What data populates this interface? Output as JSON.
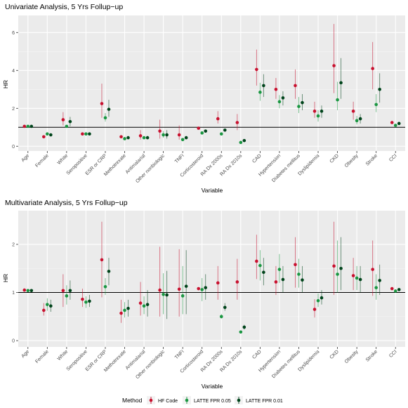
{
  "legend": {
    "title": "Method",
    "placement": "bottom",
    "entries": [
      {
        "name": "HF Code",
        "color": "#c8102e"
      },
      {
        "name": "LATTE FPR 0.05",
        "color": "#1a9641"
      },
      {
        "name": "LATTE FPR 0.01",
        "color": "#00441b"
      }
    ]
  },
  "chart_data": [
    {
      "type": "scatter",
      "title": "Univariate Analysis, 5 Yrs Follup−up",
      "xlabel": "Variable",
      "ylabel": "HR",
      "ylim": [
        -0.25,
        6.9
      ],
      "yticks": [
        0,
        2,
        4,
        6
      ],
      "reference_line": 1,
      "grid": true,
      "categories": [
        "Age",
        "Female",
        "White",
        "Seropositive",
        "ESR or CRP",
        "Methotrexate",
        "Antimalarial",
        "Other nonbiologic",
        "TNFi",
        "Corticosteroid",
        "RA Dx 2000s",
        "RA Dx 2010s",
        "CAD",
        "Hypertension",
        "Diabetes mellitus",
        "Dyslipidemia",
        "CKD",
        "Obesity",
        "Stroke",
        "CCI"
      ],
      "series": [
        {
          "name": "HF Code",
          "values": [
            1.05,
            0.5,
            1.4,
            0.65,
            2.25,
            0.5,
            0.55,
            0.8,
            0.6,
            0.95,
            1.45,
            1.25,
            4.05,
            3.0,
            3.2,
            1.85,
            4.25,
            1.85,
            4.1,
            1.25
          ],
          "lower": [
            null,
            null,
            1.1,
            null,
            1.5,
            null,
            0.35,
            0.4,
            0.35,
            null,
            1.2,
            0.85,
            3.2,
            2.5,
            2.5,
            1.5,
            2.8,
            1.4,
            3.0,
            null
          ],
          "upper": [
            null,
            null,
            1.8,
            null,
            3.3,
            null,
            0.85,
            1.4,
            1.1,
            null,
            1.85,
            1.7,
            5.1,
            3.6,
            4.05,
            2.35,
            6.45,
            2.35,
            5.5,
            null
          ]
        },
        {
          "name": "LATTE FPR 0.05",
          "values": [
            1.05,
            0.65,
            1.05,
            0.65,
            1.5,
            0.4,
            0.45,
            0.6,
            0.35,
            0.7,
            0.65,
            0.2,
            2.85,
            2.35,
            2.1,
            1.6,
            2.45,
            1.35,
            2.2,
            1.1
          ],
          "lower": [
            null,
            null,
            null,
            null,
            1.3,
            null,
            null,
            0.45,
            null,
            null,
            null,
            null,
            2.4,
            2.0,
            1.75,
            1.3,
            1.9,
            1.15,
            1.8,
            null
          ],
          "upper": [
            null,
            null,
            null,
            null,
            1.75,
            null,
            null,
            0.8,
            null,
            null,
            null,
            null,
            3.35,
            2.7,
            2.6,
            1.9,
            3.4,
            1.6,
            2.75,
            null
          ]
        },
        {
          "name": "LATTE FPR 0.01",
          "values": [
            1.05,
            0.6,
            1.3,
            0.65,
            1.95,
            0.45,
            0.45,
            0.6,
            0.45,
            0.8,
            0.85,
            0.3,
            3.2,
            2.55,
            2.3,
            1.85,
            3.35,
            1.45,
            3.0,
            1.2
          ],
          "lower": [
            null,
            null,
            1.05,
            null,
            1.55,
            null,
            null,
            0.4,
            null,
            null,
            null,
            null,
            2.6,
            2.15,
            1.9,
            1.5,
            2.5,
            1.2,
            2.3,
            null
          ],
          "upper": [
            null,
            null,
            1.55,
            null,
            2.45,
            null,
            null,
            0.85,
            null,
            null,
            null,
            null,
            3.8,
            2.9,
            2.75,
            2.15,
            4.65,
            1.7,
            3.85,
            null
          ]
        }
      ]
    },
    {
      "type": "scatter",
      "title": "Multivariate Analysis, 5 Yrs Follup−up",
      "xlabel": "Variable",
      "ylabel": "HR",
      "ylim": [
        -0.13,
        2.7
      ],
      "yticks": [
        0,
        1,
        2
      ],
      "reference_line": 1,
      "grid": true,
      "categories": [
        "Age",
        "Female",
        "White",
        "Seropositive",
        "ESR or CRP",
        "Methotrexate",
        "Antimalarial",
        "Other nonbiologic",
        "TNFi",
        "Corticosteroid",
        "RA Dx 2000s",
        "RA Dx 2010s",
        "CAD",
        "Hypertension",
        "Diabetes mellitus",
        "Dyslipidemia",
        "CKD",
        "Obesity",
        "Stroke",
        "CCI"
      ],
      "series": [
        {
          "name": "HF Code",
          "values": [
            1.05,
            0.63,
            1.04,
            0.86,
            1.68,
            0.57,
            0.78,
            1.05,
            1.07,
            1.08,
            1.2,
            1.22,
            1.65,
            1.22,
            1.58,
            0.65,
            1.55,
            1.35,
            1.48,
            1.08
          ],
          "lower": [
            null,
            0.52,
            0.7,
            0.7,
            0.9,
            0.37,
            0.52,
            0.5,
            0.5,
            null,
            0.85,
            0.85,
            1.28,
            0.95,
            1.1,
            0.48,
            0.95,
            1.05,
            0.93,
            null
          ],
          "upper": [
            null,
            0.78,
            1.38,
            1.08,
            2.47,
            0.85,
            1.22,
            1.95,
            1.9,
            null,
            1.55,
            1.7,
            2.2,
            1.55,
            2.15,
            0.86,
            2.47,
            1.72,
            2.08,
            null
          ]
        },
        {
          "name": "LATTE FPR 0.05",
          "values": [
            1.04,
            0.75,
            0.93,
            0.8,
            1.12,
            0.63,
            0.72,
            0.96,
            0.93,
            1.06,
            0.5,
            0.18,
            1.56,
            1.48,
            1.38,
            0.83,
            1.38,
            1.3,
            1.1,
            1.03
          ],
          "lower": [
            null,
            0.62,
            0.75,
            0.68,
            0.95,
            0.48,
            0.55,
            0.55,
            0.55,
            0.82,
            0.46,
            null,
            1.25,
            1.2,
            1.1,
            0.7,
            1.0,
            1.05,
            0.85,
            null
          ],
          "upper": [
            null,
            0.88,
            1.15,
            0.92,
            1.3,
            0.8,
            0.92,
            1.4,
            1.55,
            1.3,
            0.55,
            null,
            1.88,
            1.8,
            1.7,
            0.98,
            2.08,
            1.55,
            1.38,
            null
          ]
        },
        {
          "name": "LATTE FPR 0.01",
          "values": [
            1.04,
            0.72,
            1.04,
            0.82,
            1.44,
            0.67,
            0.75,
            0.95,
            1.13,
            1.1,
            0.69,
            0.28,
            1.42,
            1.27,
            1.26,
            0.89,
            1.5,
            1.27,
            1.25,
            1.06
          ],
          "lower": [
            null,
            0.6,
            0.85,
            0.7,
            1.15,
            0.5,
            0.5,
            0.45,
            0.55,
            0.85,
            0.62,
            0.23,
            1.15,
            1.0,
            1.0,
            0.75,
            1.05,
            1.0,
            0.95,
            null
          ],
          "upper": [
            null,
            0.85,
            1.25,
            0.95,
            1.72,
            0.85,
            1.05,
            1.45,
            1.88,
            1.38,
            0.78,
            0.33,
            1.72,
            1.55,
            1.55,
            1.05,
            2.15,
            1.55,
            1.58,
            null
          ]
        }
      ]
    }
  ]
}
